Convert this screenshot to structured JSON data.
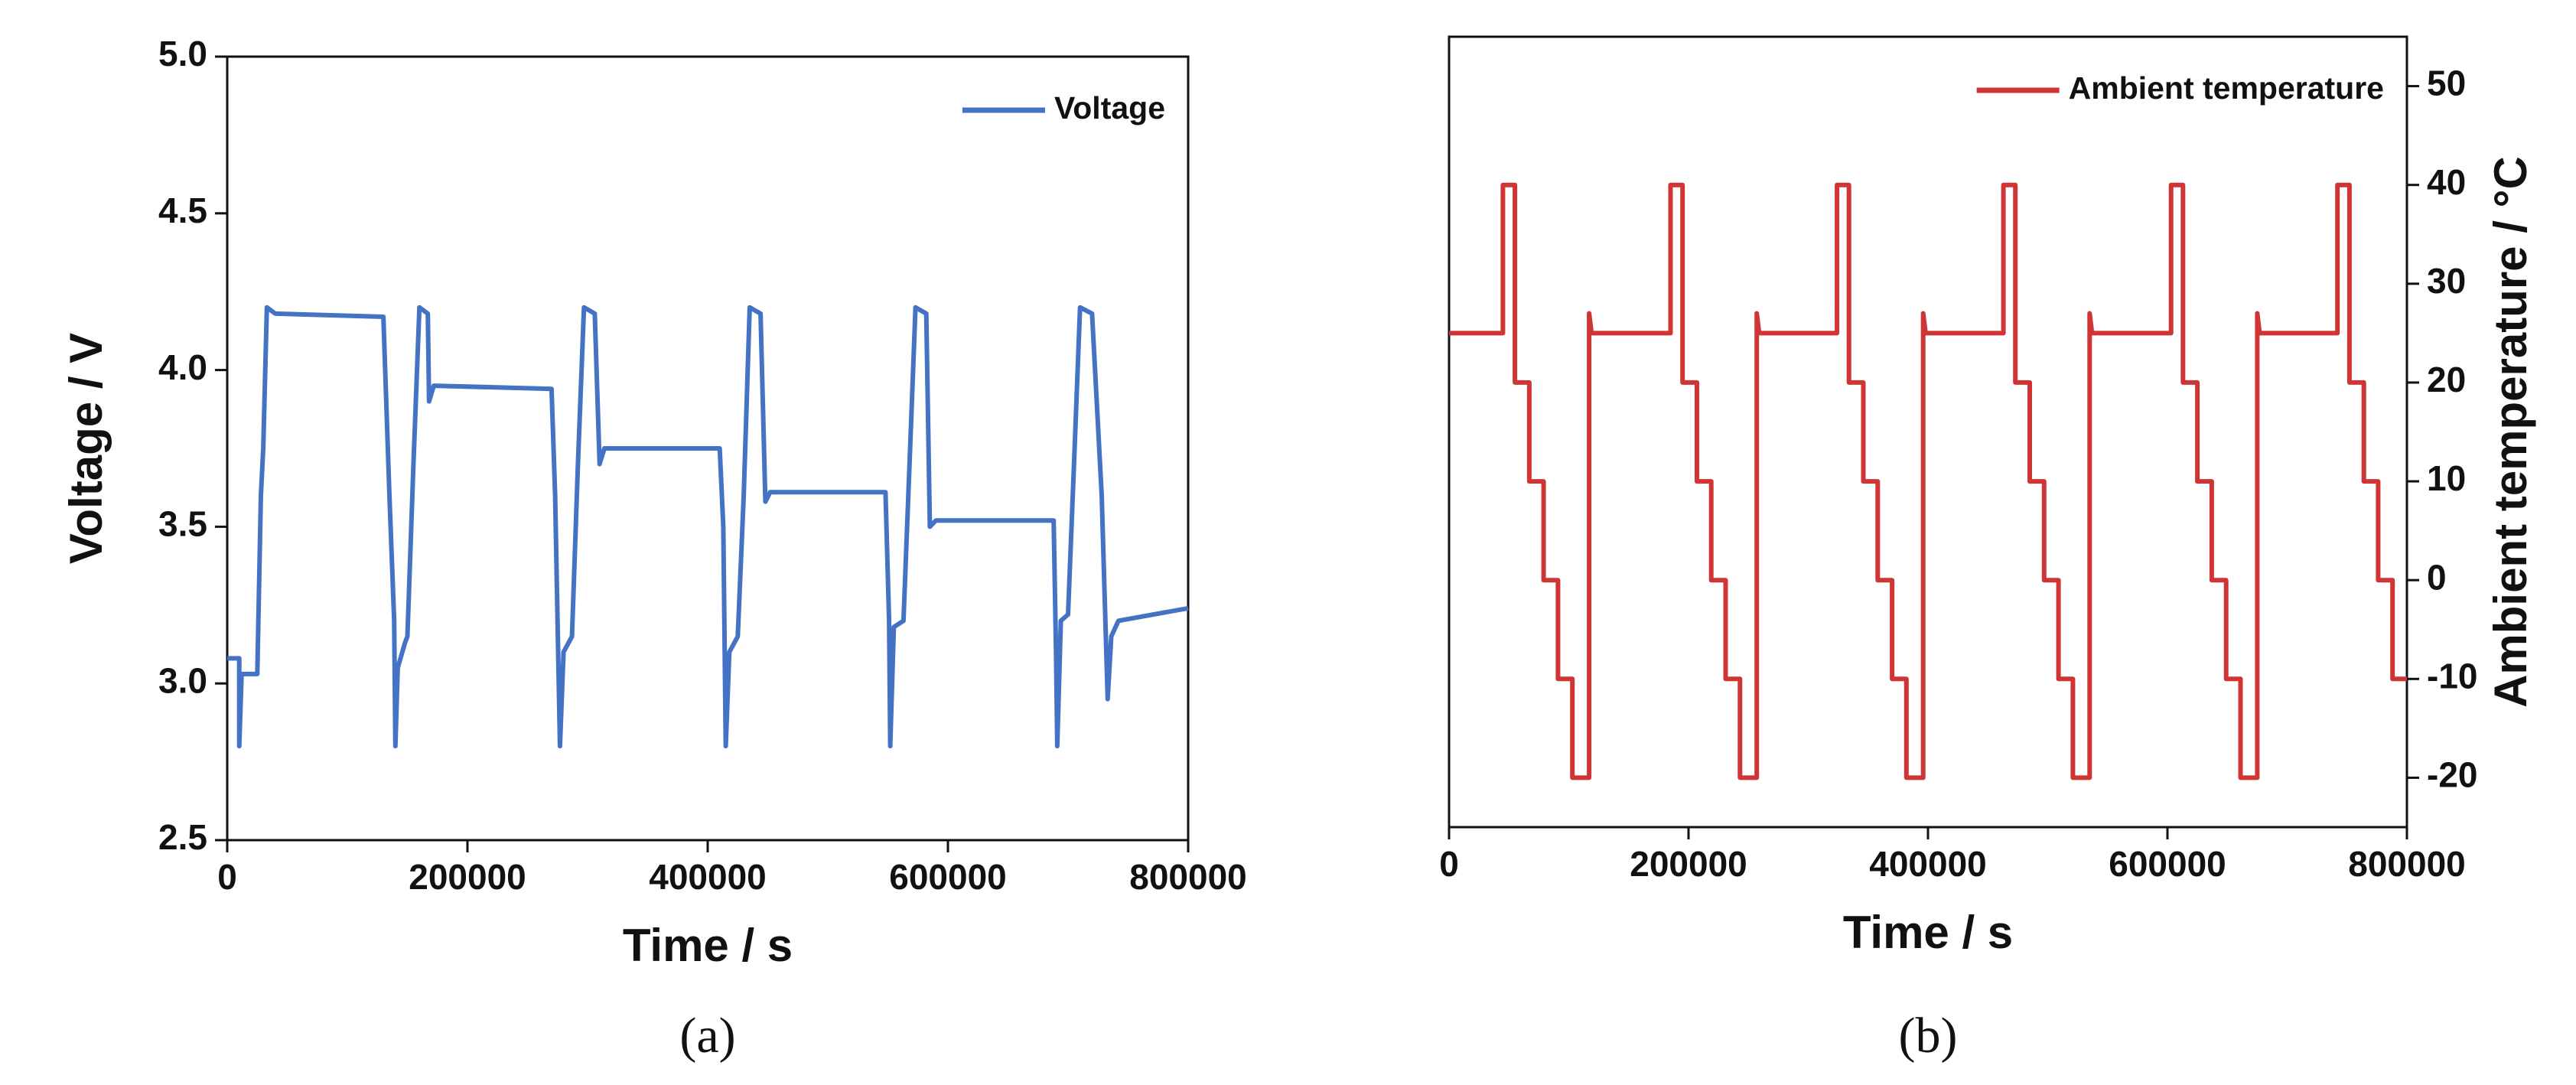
{
  "chart_data": [
    {
      "type": "line",
      "caption": "(a)",
      "xlabel": "Time / s",
      "ylabel": "Voltage / V",
      "xlim": [
        0,
        800000
      ],
      "xticks": [
        0,
        200000,
        400000,
        600000,
        800000
      ],
      "ylim": [
        2.5,
        5.0
      ],
      "yticks": [
        2.5,
        {
          "value": 3.0,
          "label": "3.0"
        },
        3.5,
        {
          "value": 4.0,
          "label": "4.0"
        },
        4.5,
        {
          "value": 5.0,
          "label": "5.0"
        }
      ],
      "y_axis_position": "left",
      "legend": "upper right",
      "series": [
        {
          "name": "Voltage",
          "color": "#4472c4",
          "x": [
            0,
            10000,
            10000,
            12000,
            25000,
            28000,
            30000,
            33000,
            40000,
            130000,
            135000,
            139000,
            140000,
            142000,
            148000,
            150000,
            155000,
            160000,
            167000,
            168000,
            172000,
            270000,
            273000,
            277000,
            280000,
            287000,
            292000,
            297000,
            306000,
            310000,
            314000,
            410000,
            413000,
            415000,
            418000,
            425000,
            430000,
            435000,
            444000,
            448000,
            452000,
            548000,
            551000,
            552000,
            555000,
            563000,
            568000,
            573000,
            582000,
            585000,
            590000,
            688000,
            690000,
            691000,
            694000,
            700000,
            705000,
            710000,
            720000,
            728000,
            733000,
            736000,
            742000,
            800000
          ],
          "values": [
            3.08,
            3.08,
            2.8,
            3.03,
            3.03,
            3.6,
            3.75,
            4.2,
            4.18,
            4.17,
            3.6,
            3.2,
            2.8,
            3.05,
            3.13,
            3.15,
            3.7,
            4.2,
            4.18,
            3.9,
            3.95,
            3.94,
            3.6,
            2.8,
            3.1,
            3.15,
            3.7,
            4.2,
            4.18,
            3.7,
            3.75,
            3.75,
            3.5,
            2.8,
            3.1,
            3.15,
            3.6,
            4.2,
            4.18,
            3.58,
            3.61,
            3.61,
            3.2,
            2.8,
            3.18,
            3.2,
            3.7,
            4.2,
            4.18,
            3.5,
            3.52,
            3.52,
            3.1,
            2.8,
            3.2,
            3.22,
            3.7,
            4.2,
            4.18,
            3.6,
            2.95,
            3.15,
            3.2,
            3.24
          ]
        }
      ]
    },
    {
      "type": "line",
      "caption": "(b)",
      "xlabel": "Time / s",
      "ylabel": "Ambient temperature / °C",
      "xlim": [
        0,
        800000
      ],
      "xticks": [
        0,
        200000,
        400000,
        600000,
        800000
      ],
      "ylim": [
        -25,
        55
      ],
      "yticks": [
        -20,
        -10,
        0,
        10,
        20,
        30,
        40,
        50
      ],
      "y_axis_position": "right",
      "legend": "upper right",
      "series": [
        {
          "name": "Ambient temperature",
          "color": "#d03535",
          "x": [
            0,
            45000,
            45000,
            55000,
            55000,
            67000,
            67000,
            79000,
            79000,
            91000,
            91000,
            103000,
            103000,
            117000,
            117000,
            119000,
            185000,
            185000,
            195000,
            195000,
            207000,
            207000,
            219000,
            219000,
            231000,
            231000,
            243000,
            243000,
            257000,
            257000,
            259000,
            324000,
            324000,
            334000,
            334000,
            346000,
            346000,
            358000,
            358000,
            370000,
            370000,
            382000,
            382000,
            396000,
            396000,
            398000,
            463000,
            463000,
            473000,
            473000,
            485000,
            485000,
            497000,
            497000,
            509000,
            509000,
            521000,
            521000,
            535000,
            535000,
            537000,
            603000,
            603000,
            613000,
            613000,
            625000,
            625000,
            637000,
            637000,
            649000,
            649000,
            661000,
            661000,
            675000,
            675000,
            677000,
            742000,
            742000,
            752000,
            752000,
            764000,
            764000,
            776000,
            776000,
            788000,
            788000,
            800000
          ],
          "values": [
            25,
            25,
            40,
            40,
            20,
            20,
            10,
            10,
            0,
            0,
            -10,
            -10,
            -20,
            -20,
            27,
            25,
            25,
            40,
            40,
            20,
            20,
            10,
            10,
            0,
            0,
            -10,
            -10,
            -20,
            -20,
            27,
            25,
            25,
            40,
            40,
            20,
            20,
            10,
            10,
            0,
            0,
            -10,
            -10,
            -20,
            -20,
            27,
            25,
            25,
            40,
            40,
            20,
            20,
            10,
            10,
            0,
            0,
            -10,
            -10,
            -20,
            -20,
            27,
            25,
            25,
            40,
            40,
            20,
            20,
            10,
            10,
            0,
            0,
            -10,
            -10,
            -20,
            -20,
            27,
            25,
            25,
            40,
            40,
            20,
            20,
            10,
            10,
            0,
            0,
            -10,
            -10
          ]
        }
      ]
    }
  ]
}
